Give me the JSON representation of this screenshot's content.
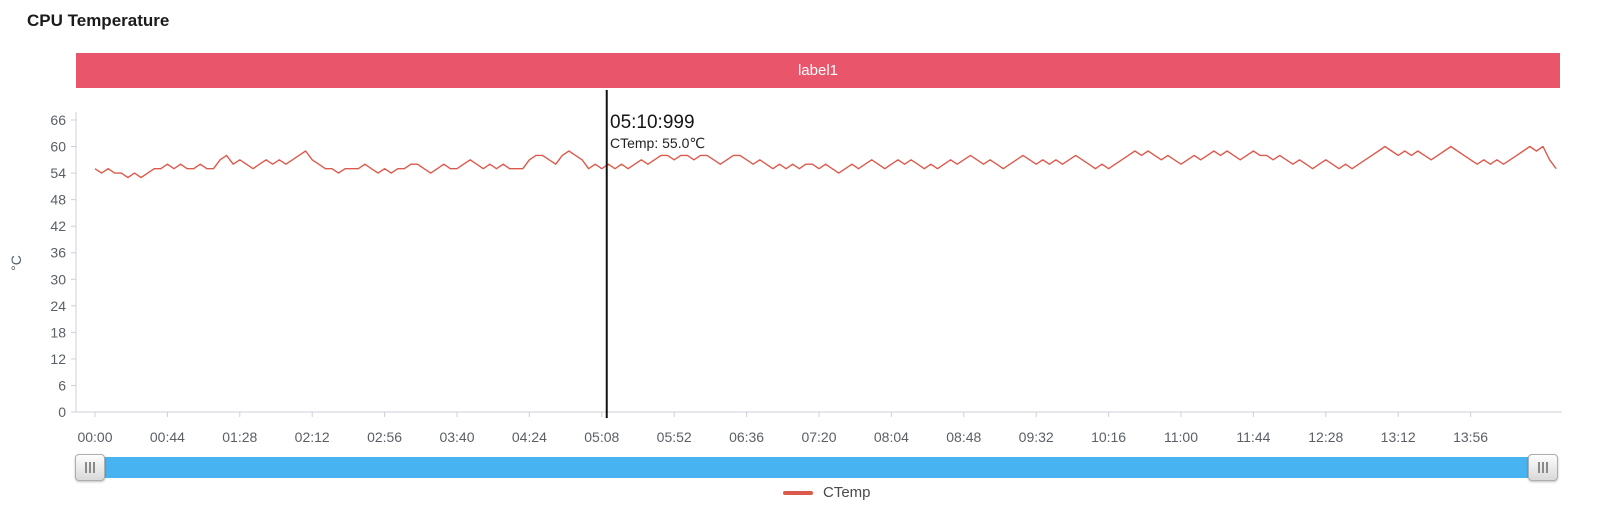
{
  "title": "CPU Temperature",
  "banner": {
    "label": "label1",
    "color": "#e9566b"
  },
  "tooltip": {
    "time": "05:10:999",
    "series_value": "CTemp: 55.0℃"
  },
  "legend": {
    "items": [
      {
        "label": "CTemp",
        "color": "#dc5a4c"
      }
    ]
  },
  "colors": {
    "axis_line": "#ccd0d7",
    "tick_label": "#5a6066",
    "cursor_line": "#111111",
    "slider_fill": "#47b4f1"
  },
  "chart_data": {
    "type": "line",
    "title": "CPU Temperature",
    "xlabel": "",
    "ylabel": "°C",
    "ylim": [
      0,
      66
    ],
    "grid": false,
    "legend_position": "bottom",
    "y_ticks": [
      0,
      6,
      12,
      18,
      24,
      30,
      36,
      42,
      48,
      54,
      60,
      66
    ],
    "x_tick_labels": [
      "00:00",
      "00:44",
      "01:28",
      "02:12",
      "02:56",
      "03:40",
      "04:24",
      "05:08",
      "05:52",
      "06:36",
      "07:20",
      "08:04",
      "08:48",
      "09:32",
      "10:16",
      "11:00",
      "11:44",
      "12:28",
      "13:12",
      "13:56"
    ],
    "x_tick_interval_seconds": 44,
    "cursor": {
      "time": "05:10:999",
      "series": "CTemp",
      "value": 55.0
    },
    "series": [
      {
        "name": "CTemp",
        "color": "#dc5a4c",
        "unit": "°C",
        "sample_interval_seconds": 4,
        "start_seconds": 0,
        "values": [
          55,
          54,
          55,
          54,
          54,
          53,
          54,
          53,
          54,
          55,
          55,
          56,
          55,
          56,
          55,
          55,
          56,
          55,
          55,
          57,
          58,
          56,
          57,
          56,
          55,
          56,
          57,
          56,
          57,
          56,
          57,
          58,
          59,
          57,
          56,
          55,
          55,
          54,
          55,
          55,
          55,
          56,
          55,
          54,
          55,
          54,
          55,
          55,
          56,
          56,
          55,
          54,
          55,
          56,
          55,
          55,
          56,
          57,
          56,
          55,
          56,
          55,
          56,
          55,
          55,
          55,
          57,
          58,
          58,
          57,
          56,
          58,
          59,
          58,
          57,
          55,
          56,
          55,
          56,
          55,
          56,
          55,
          56,
          57,
          56,
          57,
          58,
          58,
          57,
          58,
          58,
          57,
          58,
          58,
          57,
          56,
          57,
          58,
          58,
          57,
          56,
          57,
          56,
          55,
          56,
          55,
          56,
          55,
          56,
          56,
          55,
          56,
          55,
          54,
          55,
          56,
          55,
          56,
          57,
          56,
          55,
          56,
          57,
          56,
          57,
          56,
          55,
          56,
          55,
          56,
          57,
          56,
          57,
          58,
          57,
          56,
          57,
          56,
          55,
          56,
          57,
          58,
          57,
          56,
          57,
          56,
          57,
          56,
          57,
          58,
          57,
          56,
          55,
          56,
          55,
          56,
          57,
          58,
          59,
          58,
          59,
          58,
          57,
          58,
          57,
          56,
          57,
          58,
          57,
          58,
          59,
          58,
          59,
          58,
          57,
          58,
          59,
          58,
          58,
          57,
          58,
          57,
          56,
          57,
          56,
          55,
          56,
          57,
          56,
          55,
          56,
          55,
          56,
          57,
          58,
          59,
          60,
          59,
          58,
          59,
          58,
          59,
          58,
          57,
          58,
          59,
          60,
          59,
          58,
          57,
          56,
          57,
          56,
          57,
          56,
          57,
          58,
          59,
          60,
          59,
          60,
          57,
          55
        ]
      }
    ]
  }
}
